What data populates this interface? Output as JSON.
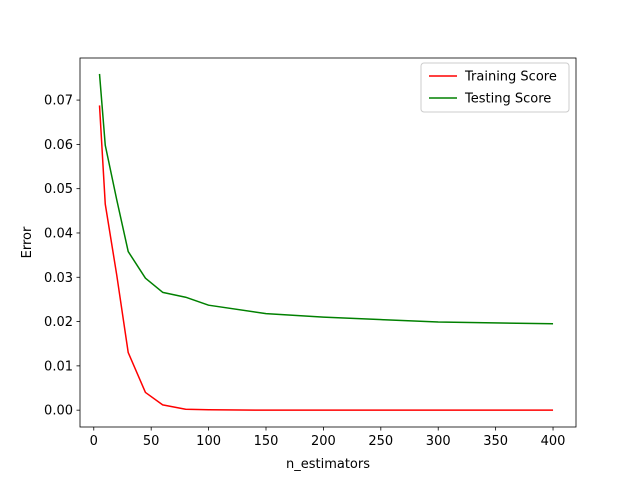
{
  "chart_data": {
    "type": "line",
    "title": "",
    "xlabel": "n_estimators",
    "ylabel": "Error",
    "xlim": [
      -12,
      420
    ],
    "ylim": [
      -0.0038,
      0.0795
    ],
    "xticks": [
      0,
      50,
      100,
      150,
      200,
      250,
      300,
      350,
      400
    ],
    "xtick_labels": [
      "0",
      "50",
      "100",
      "150",
      "200",
      "250",
      "300",
      "350",
      "400"
    ],
    "yticks": [
      0.0,
      0.01,
      0.02,
      0.03,
      0.04,
      0.05,
      0.06,
      0.07
    ],
    "ytick_labels": [
      "0.00",
      "0.01",
      "0.02",
      "0.03",
      "0.04",
      "0.05",
      "0.06",
      "0.07"
    ],
    "grid": false,
    "legend_position": "top-right",
    "series": [
      {
        "name": "Training Score",
        "color": "#ff0000",
        "x": [
          5,
          10,
          20,
          30,
          45,
          60,
          80,
          100,
          150,
          200,
          300,
          400
        ],
        "y": [
          0.0688,
          0.0465,
          0.0305,
          0.013,
          0.004,
          0.0012,
          0.0002,
          0.0001,
          0.0,
          0.0,
          0.0,
          0.0
        ]
      },
      {
        "name": "Testing Score",
        "color": "#008000",
        "x": [
          5,
          10,
          20,
          30,
          45,
          60,
          80,
          100,
          150,
          200,
          300,
          400
        ],
        "y": [
          0.0759,
          0.0598,
          0.0475,
          0.0358,
          0.0298,
          0.0266,
          0.0255,
          0.0237,
          0.0218,
          0.021,
          0.0199,
          0.0195
        ]
      }
    ]
  }
}
